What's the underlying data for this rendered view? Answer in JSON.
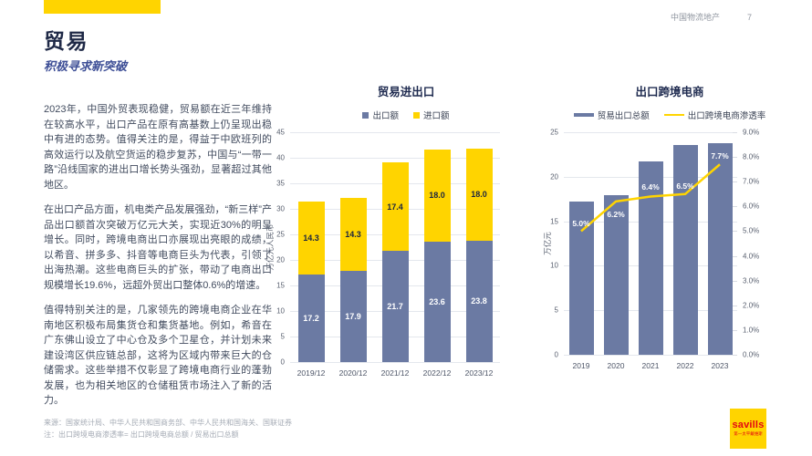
{
  "page": {
    "header_brand": "中国物流地产",
    "page_number": "7",
    "title": "贸易",
    "subtitle": "积极寻求新突破"
  },
  "article": {
    "paragraphs": [
      "2023年，中国外贸表现稳健，贸易额在近三年维持在较高水平，出口产品在原有高基数上仍呈现出稳中有进的态势。值得关注的是，得益于中欧班列的高效运行以及航空货运的稳步复苏，中国与“一带一路”沿线国家的进出口增长势头强劲，显著超过其他地区。",
      "在出口产品方面，机电类产品发展强劲，“新三样”产品出口额首次突破万亿元大关，实现近30%的明显增长。同时，跨境电商出口亦展现出亮眼的成绩，以希音、拼多多、抖音等电商巨头为代表，引领了出海热潮。这些电商巨头的扩张，带动了电商出口规模增长19.6%，远超外贸出口整体0.6%的增速。",
      "值得特别关注的是，几家领先的跨境电商企业在华南地区积极布局集货仓和集货基地。例如，希音在广东佛山设立了中心仓及多个卫星仓，并计划未来建设湾区供应链总部，这将为区域内带来巨大的仓储需求。这些举措不仅彰显了跨境电商行业的蓬勃发展，也为相关地区的仓储租赁市场注入了新的活力。"
    ]
  },
  "colors": {
    "slate": "#6B7AA3",
    "yellow": "#FFD400",
    "navy": "#1F2B50",
    "label_on_yellow": "#1A2440",
    "label_on_slate": "#ffffff"
  },
  "chart_data": [
    {
      "type": "bar",
      "stacked": true,
      "title": "贸易进出口",
      "categories": [
        "2019/12",
        "2020/12",
        "2021/12",
        "2022/12",
        "2023/12"
      ],
      "series": [
        {
          "name": "出口额",
          "color": "#6B7AA3",
          "values": [
            17.2,
            17.9,
            21.7,
            23.6,
            23.8
          ]
        },
        {
          "name": "进口额",
          "color": "#FFD400",
          "values": [
            14.3,
            14.3,
            17.4,
            18.0,
            18.0
          ]
        }
      ],
      "ylabel": "万亿元人民币",
      "ylim": [
        0,
        45
      ],
      "ytick_step": 5,
      "grid": true,
      "legend_position": "top"
    },
    {
      "type": "bar+line",
      "title": "出口跨境电商",
      "categories": [
        "2019",
        "2020",
        "2021",
        "2022",
        "2023"
      ],
      "bar_series": {
        "name": "贸易出口总额",
        "color": "#6B7AA3",
        "values": [
          17.2,
          17.9,
          21.7,
          23.6,
          23.8
        ]
      },
      "line_series": {
        "name": "出口跨境电商渗透率",
        "color": "#FFD400",
        "values": [
          5.0,
          6.2,
          6.4,
          6.5,
          7.7
        ],
        "labels": [
          "5.0%",
          "6.2%",
          "6.4%",
          "6.5%",
          "7.7%"
        ]
      },
      "ylabel": "万亿元",
      "ylim": [
        0,
        25
      ],
      "ytick_step": 5,
      "y2lim": [
        0,
        9
      ],
      "y2tick_step": 1,
      "y2_format": "percent",
      "grid": true,
      "legend_position": "top"
    }
  ],
  "footer": {
    "source": "来源：国家统计局、中华人民共和国商务部、中华人民共和国海关、国联证券",
    "note": "注：出口跨境电商渗透率= 出口跨境电商总额 / 贸易出口总额",
    "logo_text": "savills",
    "logo_subtext": "第一太平戴维斯"
  }
}
